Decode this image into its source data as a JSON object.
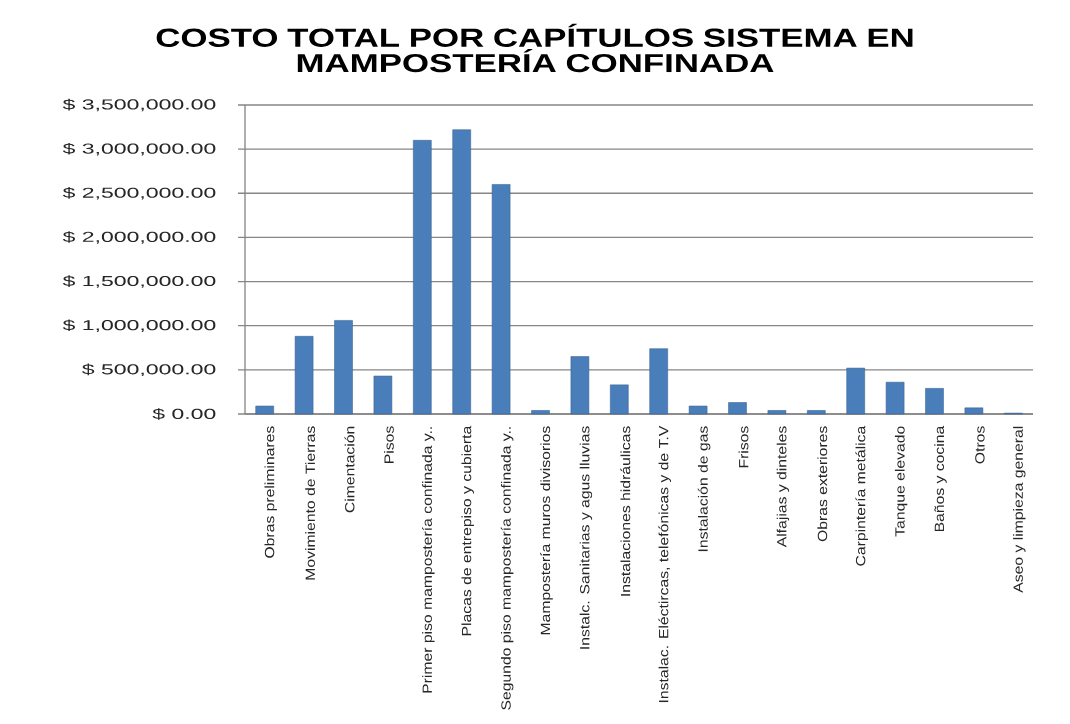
{
  "chart_data": {
    "type": "bar",
    "title": "COSTO TOTAL POR CAPÍTULOS SISTEMA EN MAMPOSTERÍA CONFINADA",
    "categories": [
      "Obras preliminares",
      "Movimiento de Tierras",
      "Cimentación",
      "Pisos",
      "Primer piso mampostería confinada y..",
      "Placas de entrepiso y cubierta",
      "Segundo piso mampostería confinada y..",
      "Mampostería muros divisorios",
      "Instalc. Sanitarias y agus lluvias",
      "Instalaciones hidráulicas",
      "Instalac. Eléctircas, telefónicas y de T.V",
      "Instalación de gas",
      "Frisos",
      "Alfajias y dinteles",
      "Obras exteriores",
      "Carpintería metálica",
      "Tanque elevado",
      "Baños y cocina",
      "Otros",
      "Aseo y limpieza general"
    ],
    "values": [
      90000,
      880000,
      1060000,
      430000,
      3100000,
      3220000,
      2600000,
      40000,
      650000,
      330000,
      740000,
      90000,
      130000,
      40000,
      40000,
      520000,
      360000,
      290000,
      70000,
      10000
    ],
    "color": "#4a7ebb",
    "ylim": [
      0,
      3500000
    ],
    "yticks": [
      {
        "value": 0,
        "label": "$ 0.00"
      },
      {
        "value": 500000,
        "label": "$ 500,000.00"
      },
      {
        "value": 1000000,
        "label": "$ 1,000,000.00"
      },
      {
        "value": 1500000,
        "label": "$ 1,500,000.00"
      },
      {
        "value": 2000000,
        "label": "$ 2,000,000.00"
      },
      {
        "value": 2500000,
        "label": "$ 2,500,000.00"
      },
      {
        "value": 3000000,
        "label": "$ 3,000,000.00"
      },
      {
        "value": 3500000,
        "label": "$ 3,500,000.00"
      }
    ],
    "grid": "y"
  }
}
